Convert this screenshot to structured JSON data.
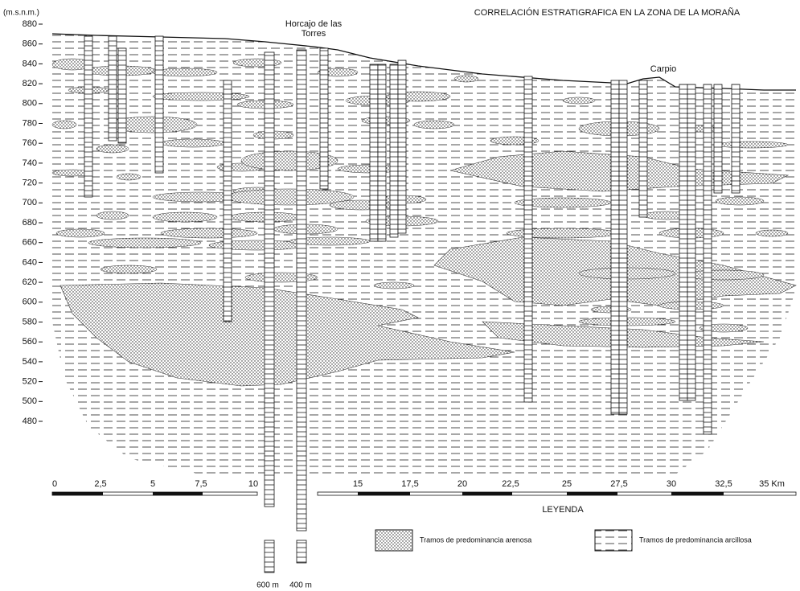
{
  "header": {
    "title": "CORRELACIÓN ESTRATIGRAFICA EN LA ZONA DE LA MORAÑA"
  },
  "elevation_axis": {
    "unit": "(m.s.n.m.)",
    "ticks": [
      880,
      860,
      840,
      820,
      800,
      780,
      760,
      740,
      720,
      700,
      680,
      660,
      640,
      620,
      600,
      580,
      560,
      540,
      520,
      500,
      480
    ]
  },
  "places": [
    "Horcajo de las Torres",
    "Carpio"
  ],
  "distance_scale": [
    "0",
    "2,5",
    "5",
    "7,5",
    "10",
    "15",
    "17,5",
    "20",
    "22,5",
    "25",
    "27,5",
    "30",
    "32,5",
    "35 Km"
  ],
  "boreholes": [
    "600 m",
    "400 m"
  ],
  "legend": {
    "title": "LEYENDA",
    "items": [
      "Tramos de predominancia arenosa",
      "Tramos de predominancia arcillosa"
    ]
  }
}
